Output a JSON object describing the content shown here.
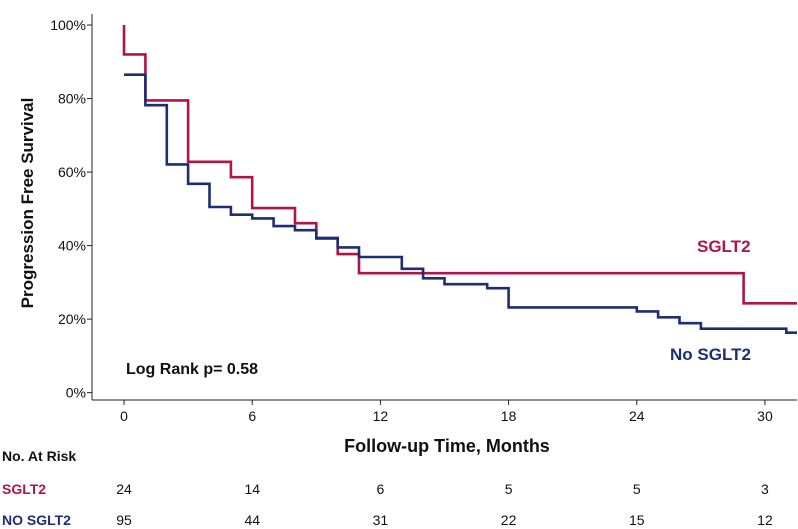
{
  "chart_data": {
    "type": "line",
    "subtype": "kaplan-meier-step",
    "ylabel": "Progression Free Survival",
    "xlabel": "Follow-up Time, Months",
    "xlim": [
      -1.5,
      31.5
    ],
    "ylim": [
      -2,
      103
    ],
    "xticks": [
      0,
      6,
      12,
      18,
      24,
      30
    ],
    "xtick_labels": [
      "0",
      "6",
      "12",
      "18",
      "24",
      "30"
    ],
    "yticks": [
      0,
      20,
      40,
      60,
      80,
      100
    ],
    "ytick_labels": [
      "0%",
      "20%",
      "40%",
      "60%",
      "80%",
      "100%"
    ],
    "grid": false,
    "annotation": "Log Rank p= 0.58",
    "series": [
      {
        "name": "SGLT2",
        "color": "#b0144a",
        "x": [
          0,
          0,
          1,
          1,
          3,
          3,
          5,
          5,
          6,
          6,
          8,
          8,
          9,
          9,
          10,
          10,
          11,
          11,
          29,
          29,
          31.5
        ],
        "y": [
          100,
          92,
          92,
          79.5,
          79.5,
          62.8,
          62.8,
          58.6,
          58.6,
          50.2,
          50.2,
          46.1,
          46.1,
          41.9,
          41.9,
          37.7,
          37.7,
          32.5,
          32.5,
          24.3,
          24.3
        ]
      },
      {
        "name": "No SGLT2",
        "color": "#1c2f73",
        "x": [
          0,
          0,
          1,
          1,
          2,
          2,
          3,
          3,
          4,
          4,
          5,
          5,
          6,
          6,
          7,
          7,
          8,
          8,
          9,
          9,
          10,
          10,
          11,
          11,
          13,
          13,
          14,
          14,
          15,
          15,
          17,
          17,
          18,
          18,
          24,
          24,
          25,
          25,
          26,
          26,
          27,
          27,
          31,
          31,
          31.5
        ],
        "y": [
          86.5,
          86.5,
          86.5,
          78.2,
          78.2,
          62.1,
          62.1,
          56.8,
          56.8,
          50.5,
          50.5,
          48.4,
          48.4,
          47.4,
          47.4,
          45.3,
          45.3,
          44.2,
          44.2,
          42.1,
          42.1,
          39.5,
          39.5,
          36.9,
          36.9,
          33.7,
          33.7,
          31.1,
          31.1,
          29.5,
          29.5,
          28.4,
          28.4,
          23.2,
          23.2,
          22.1,
          22.1,
          20.5,
          20.5,
          18.9,
          18.9,
          17.4,
          17.4,
          16.3,
          16.3
        ]
      }
    ],
    "risk_table": {
      "title": "No. At Risk",
      "rows": [
        {
          "label": "SGLT2",
          "color": "#b0144a",
          "values": [
            "24",
            "14",
            "6",
            "5",
            "5",
            "3"
          ]
        },
        {
          "label": "NO SGLT2",
          "color": "#1c2f73",
          "values": [
            "95",
            "44",
            "31",
            "22",
            "15",
            "12"
          ]
        }
      ]
    }
  }
}
